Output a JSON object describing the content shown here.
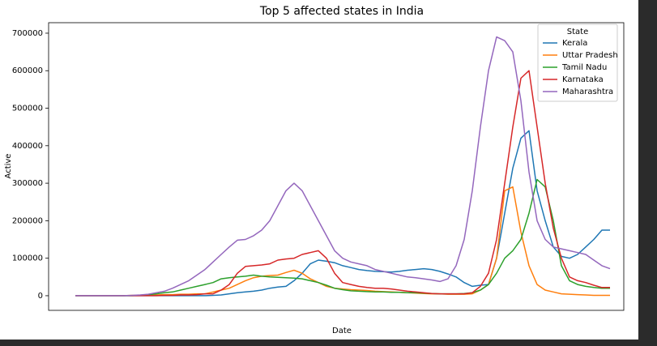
{
  "chart_data": {
    "type": "line",
    "title": "Top 5 affected states in India",
    "xlabel": "Date",
    "ylabel": "Active",
    "legend_title": "State",
    "legend": "upper right",
    "ylim": [
      -39000,
      728000
    ],
    "yticks": [
      0,
      100000,
      200000,
      300000,
      400000,
      500000,
      600000,
      700000
    ],
    "series": [
      {
        "name": "Kerala",
        "color": "#1f77b4",
        "values": [
          0,
          0,
          0,
          0,
          0,
          0,
          0,
          0,
          0,
          0,
          0,
          0,
          0,
          0,
          0,
          0,
          0,
          1000,
          2000,
          5000,
          8000,
          10000,
          12000,
          15000,
          20000,
          23000,
          25000,
          40000,
          60000,
          85000,
          95000,
          92000,
          88000,
          80000,
          75000,
          70000,
          67000,
          65000,
          64000,
          63000,
          65000,
          68000,
          70000,
          72000,
          70000,
          65000,
          58000,
          50000,
          35000,
          25000,
          28000,
          30000,
          100000,
          220000,
          340000,
          420000,
          440000,
          280000,
          200000,
          130000,
          105000,
          100000,
          110000,
          130000,
          150000,
          175000,
          175000
        ]
      },
      {
        "name": "Uttar Pradesh",
        "color": "#ff7f0e",
        "values": [
          0,
          0,
          0,
          0,
          0,
          0,
          0,
          1000,
          1000,
          2000,
          2000,
          3000,
          3000,
          4000,
          4000,
          5000,
          5000,
          10000,
          15000,
          20000,
          30000,
          40000,
          48000,
          52000,
          54000,
          55000,
          62000,
          68000,
          60000,
          45000,
          35000,
          25000,
          20000,
          18000,
          16000,
          15000,
          14000,
          12000,
          11000,
          10000,
          9000,
          8000,
          7000,
          6000,
          5000,
          5000,
          4000,
          4000,
          4000,
          5000,
          15000,
          30000,
          100000,
          280000,
          290000,
          170000,
          80000,
          30000,
          15000,
          10000,
          5000,
          4000,
          3000,
          2000,
          1000,
          1000,
          1000
        ]
      },
      {
        "name": "Tamil Nadu",
        "color": "#2ca02c",
        "values": [
          0,
          0,
          0,
          0,
          0,
          0,
          0,
          0,
          1000,
          3000,
          5000,
          8000,
          10000,
          15000,
          20000,
          25000,
          30000,
          35000,
          45000,
          48000,
          50000,
          52000,
          55000,
          52000,
          50000,
          49000,
          48000,
          47000,
          45000,
          40000,
          35000,
          28000,
          20000,
          16000,
          13000,
          12000,
          11000,
          10000,
          10000,
          9000,
          9000,
          8000,
          8000,
          7000,
          6000,
          5000,
          5000,
          5000,
          6000,
          8000,
          15000,
          30000,
          60000,
          100000,
          120000,
          150000,
          220000,
          310000,
          290000,
          200000,
          80000,
          40000,
          30000,
          25000,
          22000,
          20000,
          20000
        ]
      },
      {
        "name": "Karnataka",
        "color": "#d62728",
        "values": [
          0,
          0,
          0,
          0,
          0,
          0,
          0,
          0,
          0,
          0,
          0,
          1000,
          1000,
          2000,
          2000,
          3000,
          5000,
          5000,
          15000,
          30000,
          60000,
          78000,
          80000,
          82000,
          85000,
          95000,
          98000,
          100000,
          110000,
          115000,
          120000,
          100000,
          60000,
          35000,
          30000,
          25000,
          22000,
          20000,
          20000,
          18000,
          15000,
          12000,
          10000,
          8000,
          6000,
          5000,
          5000,
          5000,
          5000,
          8000,
          25000,
          60000,
          150000,
          300000,
          450000,
          580000,
          600000,
          450000,
          300000,
          180000,
          100000,
          50000,
          40000,
          35000,
          28000,
          22000,
          22000
        ]
      },
      {
        "name": "Maharashtra",
        "color": "#9467bd",
        "values": [
          0,
          0,
          0,
          0,
          0,
          0,
          0,
          1000,
          2000,
          4000,
          8000,
          12000,
          20000,
          30000,
          40000,
          55000,
          70000,
          90000,
          110000,
          130000,
          148000,
          150000,
          160000,
          175000,
          200000,
          240000,
          280000,
          300000,
          280000,
          240000,
          200000,
          160000,
          120000,
          100000,
          90000,
          85000,
          80000,
          70000,
          65000,
          60000,
          55000,
          50000,
          48000,
          45000,
          42000,
          38000,
          45000,
          80000,
          150000,
          280000,
          450000,
          600000,
          690000,
          680000,
          650000,
          520000,
          330000,
          200000,
          150000,
          130000,
          125000,
          120000,
          115000,
          110000,
          95000,
          80000,
          72000
        ]
      }
    ]
  }
}
